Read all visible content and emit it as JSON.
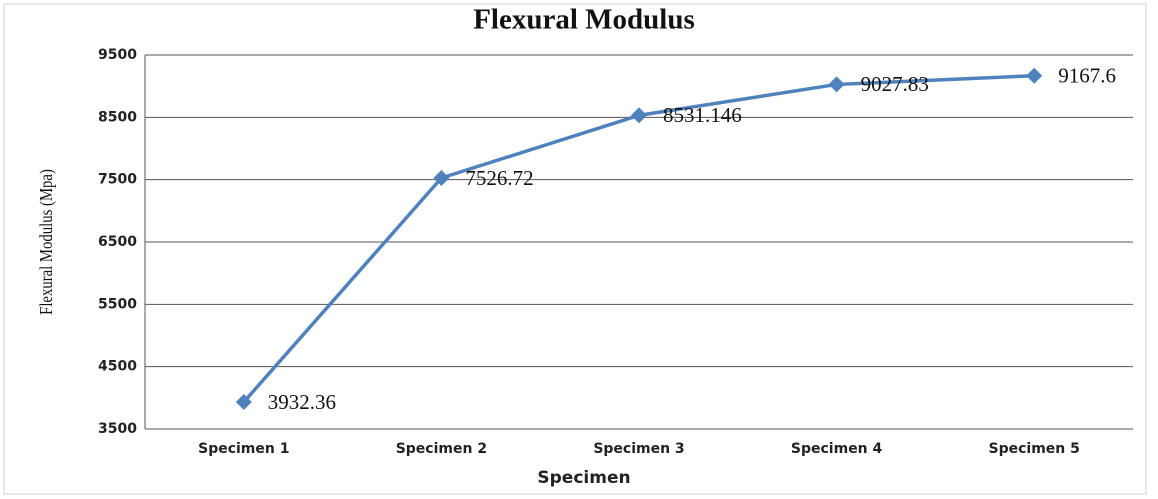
{
  "chart_data": {
    "type": "line",
    "title": "Flexural Modulus",
    "x_label": "Specimen",
    "y_label": "Flexural Modulus (Mpa)",
    "categories": [
      "Specimen 1",
      "Specimen 2",
      "Specimen 3",
      "Specimen 4",
      "Specimen 5"
    ],
    "series": [
      {
        "name": "Flexural Modulus",
        "color": "#4f81bd",
        "values": [
          3932.36,
          7526.72,
          8531.146,
          9027.83,
          9167.6
        ]
      }
    ],
    "ylim": [
      3500,
      9500
    ],
    "yticks": [
      3500,
      4500,
      5500,
      6500,
      7500,
      8500,
      9500
    ],
    "grid": true
  }
}
